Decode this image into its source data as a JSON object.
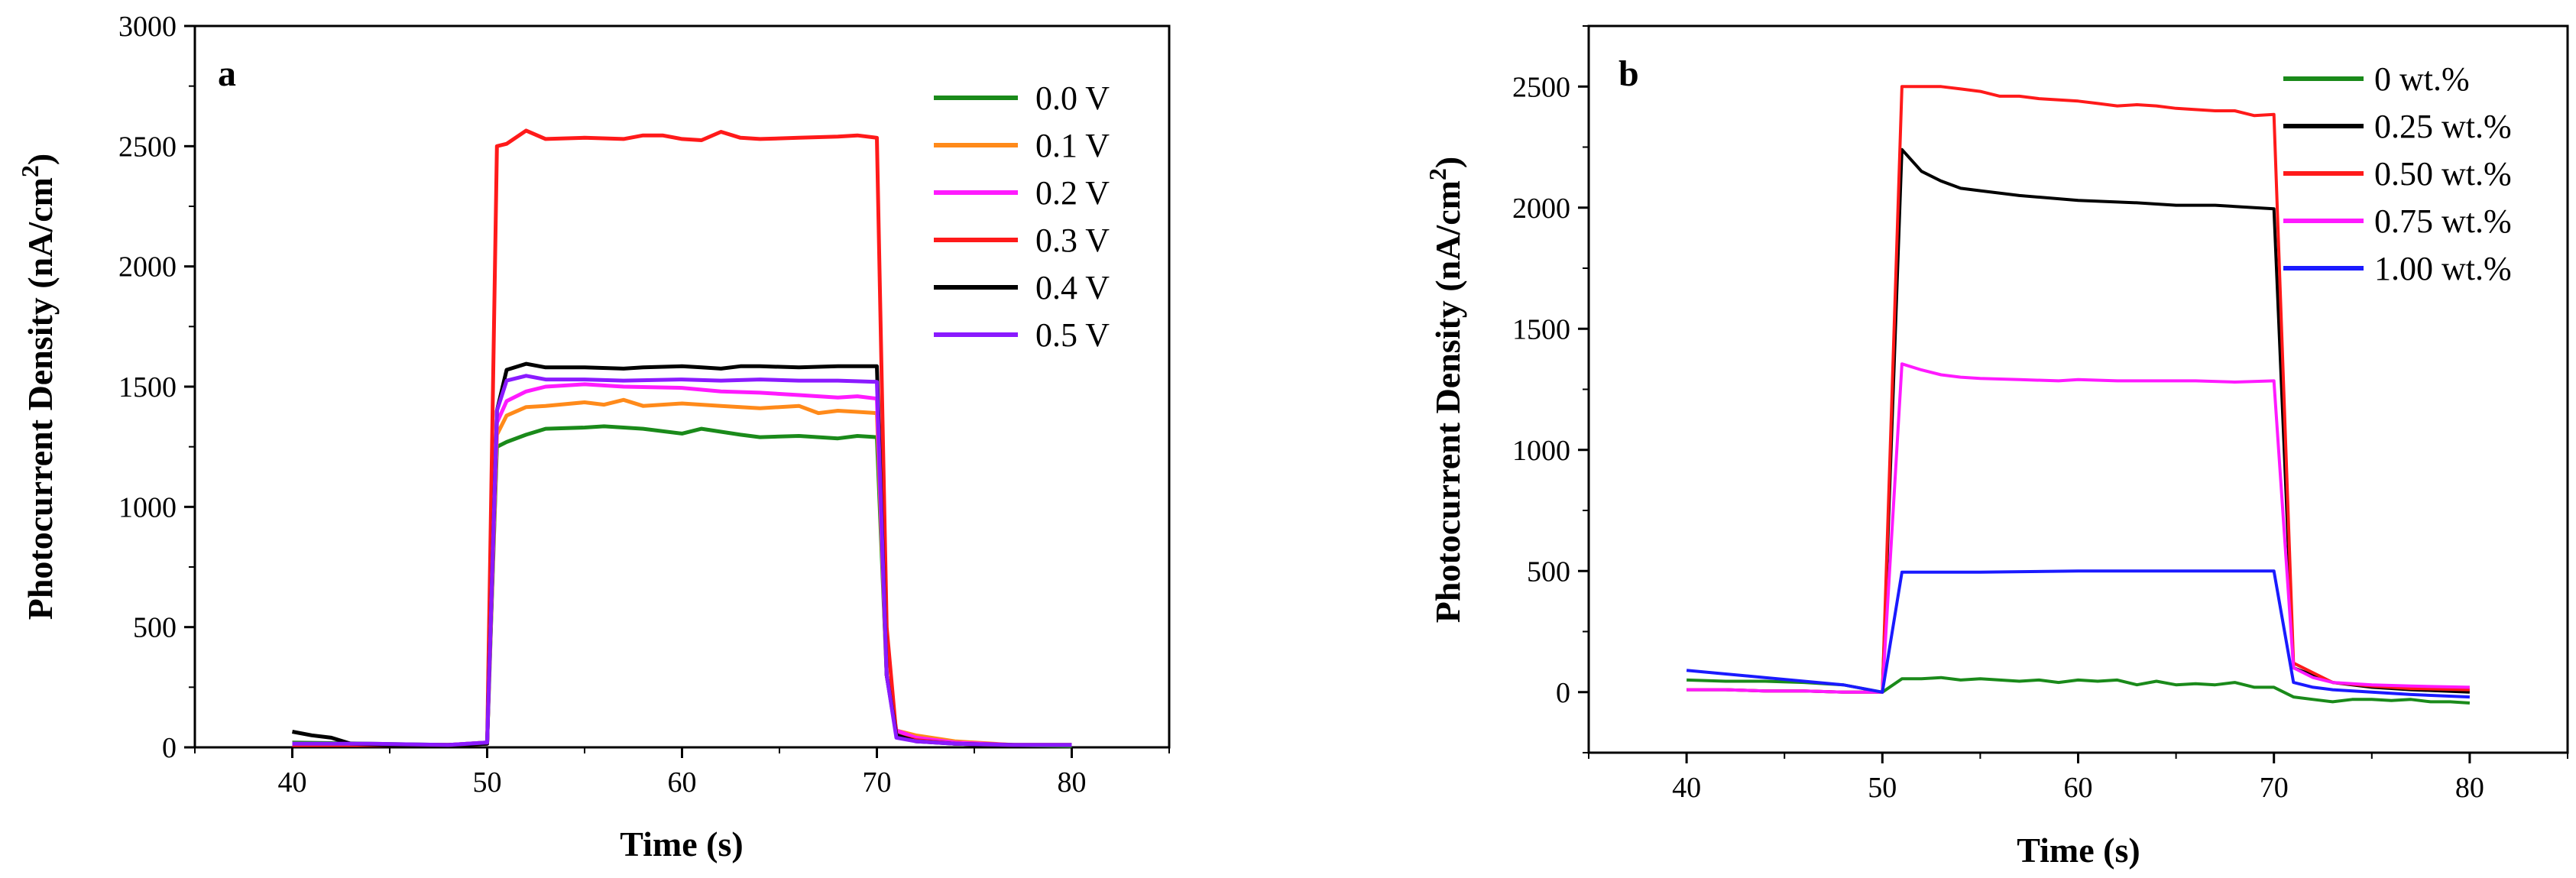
{
  "chart_data": [
    {
      "type": "line",
      "panel_label": "a",
      "xlabel": "Time (s)",
      "ylabel_main": "Photocurrent Density (nA/cm",
      "ylabel_sup": "2",
      "ylabel_close": ")",
      "xlim": [
        35,
        85
      ],
      "ylim": [
        0,
        3000
      ],
      "xticks": [
        40,
        50,
        60,
        70,
        80
      ],
      "xtick_labels": [
        "40",
        "50",
        "60",
        "70",
        "80"
      ],
      "yticks": [
        0,
        500,
        1000,
        1500,
        2000,
        2500,
        3000
      ],
      "ytick_labels": [
        "0",
        "500",
        "1000",
        "1500",
        "2000",
        "2500",
        "3000"
      ],
      "legend_position": "top-right",
      "series": [
        {
          "name": "0.0 V",
          "color": "#1a8a1a",
          "x": [
            40,
            44,
            48,
            50,
            50.5,
            51,
            52,
            53,
            55,
            56,
            58,
            60,
            61,
            63,
            64,
            66,
            68,
            69,
            70,
            70.5,
            71,
            72,
            74,
            77,
            80
          ],
          "y": [
            20,
            15,
            10,
            20,
            1250,
            1270,
            1300,
            1325,
            1330,
            1335,
            1325,
            1305,
            1325,
            1300,
            1290,
            1295,
            1285,
            1295,
            1290,
            300,
            60,
            30,
            15,
            10,
            5
          ]
        },
        {
          "name": "0.1 V",
          "color": "#ff8a1a",
          "x": [
            40,
            44,
            48,
            50,
            50.5,
            51,
            52,
            53,
            55,
            56,
            57,
            58,
            60,
            62,
            64,
            66,
            67,
            68,
            69,
            70,
            70.5,
            71,
            72,
            74,
            77,
            80
          ],
          "y": [
            15,
            10,
            10,
            20,
            1300,
            1380,
            1415,
            1420,
            1435,
            1425,
            1445,
            1420,
            1430,
            1420,
            1410,
            1420,
            1390,
            1400,
            1395,
            1390,
            300,
            70,
            50,
            25,
            10,
            10
          ]
        },
        {
          "name": "0.2 V",
          "color": "#ff1aff",
          "x": [
            40,
            44,
            48,
            50,
            50.5,
            51,
            52,
            53,
            55,
            57,
            60,
            62,
            64,
            66,
            68,
            69,
            70,
            70.5,
            71,
            72,
            74,
            77,
            80
          ],
          "y": [
            10,
            10,
            10,
            20,
            1350,
            1440,
            1480,
            1500,
            1510,
            1500,
            1495,
            1480,
            1475,
            1465,
            1455,
            1460,
            1450,
            300,
            70,
            40,
            20,
            10,
            10
          ]
        },
        {
          "name": "0.3 V",
          "color": "#ff1a1a",
          "x": [
            40,
            44,
            48,
            50,
            50.5,
            51,
            52,
            53,
            55,
            57,
            58,
            59,
            60,
            61,
            62,
            63,
            64,
            66,
            68,
            69,
            70,
            70.5,
            71,
            72,
            74,
            77,
            80
          ],
          "y": [
            10,
            10,
            10,
            15,
            2500,
            2510,
            2565,
            2530,
            2535,
            2530,
            2545,
            2545,
            2530,
            2525,
            2560,
            2535,
            2530,
            2535,
            2540,
            2545,
            2535,
            500,
            50,
            30,
            15,
            10,
            10
          ]
        },
        {
          "name": "0.4 V",
          "color": "#000000",
          "x": [
            40,
            41,
            42,
            43,
            45,
            48,
            50,
            50.5,
            51,
            52,
            53,
            55,
            57,
            58,
            60,
            61,
            62,
            63,
            64,
            66,
            68,
            70,
            70.5,
            71,
            72,
            74,
            77,
            80
          ],
          "y": [
            65,
            50,
            40,
            15,
            10,
            10,
            15,
            1400,
            1570,
            1595,
            1580,
            1580,
            1575,
            1580,
            1585,
            1580,
            1575,
            1585,
            1585,
            1580,
            1585,
            1585,
            300,
            50,
            25,
            15,
            10,
            10
          ]
        },
        {
          "name": "0.5 V",
          "color": "#8a1aff",
          "x": [
            40,
            44,
            48,
            50,
            50.5,
            51,
            52,
            53,
            55,
            57,
            60,
            62,
            64,
            66,
            68,
            70,
            70.5,
            71,
            72,
            74,
            77,
            80
          ],
          "y": [
            15,
            15,
            10,
            20,
            1400,
            1525,
            1545,
            1530,
            1530,
            1525,
            1530,
            1525,
            1530,
            1525,
            1525,
            1520,
            300,
            40,
            25,
            15,
            10,
            10
          ]
        }
      ]
    },
    {
      "type": "line",
      "panel_label": "b",
      "xlabel": "Time (s)",
      "ylabel_main": "Photocurrent Density (nA/cm",
      "ylabel_sup": "2",
      "ylabel_close": ")",
      "xlim": [
        35,
        85
      ],
      "ylim": [
        -250,
        2750
      ],
      "xticks": [
        40,
        50,
        60,
        70,
        80
      ],
      "xtick_labels": [
        "40",
        "50",
        "60",
        "70",
        "80"
      ],
      "yticks": [
        0,
        500,
        1000,
        1500,
        2000,
        2500
      ],
      "ytick_labels": [
        "0",
        "500",
        "1000",
        "1500",
        "2000",
        "2500"
      ],
      "legend_position": "top-right",
      "series": [
        {
          "name": "0 wt.%",
          "color": "#1a8a1a",
          "x": [
            40,
            42,
            44,
            46,
            48,
            50,
            51,
            52,
            53,
            54,
            55,
            56,
            57,
            58,
            59,
            60,
            61,
            62,
            63,
            64,
            65,
            66,
            67,
            68,
            69,
            70,
            71,
            72,
            73,
            74,
            75,
            76,
            77,
            78,
            79,
            80
          ],
          "y": [
            50,
            45,
            45,
            40,
            30,
            0,
            55,
            55,
            60,
            50,
            55,
            50,
            45,
            50,
            40,
            50,
            45,
            50,
            30,
            45,
            30,
            35,
            30,
            40,
            20,
            20,
            -20,
            -30,
            -40,
            -30,
            -30,
            -35,
            -30,
            -40,
            -40,
            -45
          ]
        },
        {
          "name": "0.25 wt.%",
          "color": "#000000",
          "x": [
            40,
            42,
            44,
            46,
            48,
            50,
            51,
            52,
            53,
            54,
            55,
            57,
            60,
            63,
            65,
            67,
            69,
            70,
            71,
            72,
            73,
            75,
            77,
            80
          ],
          "y": [
            10,
            10,
            5,
            5,
            0,
            0,
            2240,
            2150,
            2110,
            2080,
            2070,
            2050,
            2030,
            2020,
            2010,
            2010,
            2000,
            1995,
            100,
            70,
            40,
            20,
            10,
            0
          ]
        },
        {
          "name": "0.50 wt.%",
          "color": "#ff1a1a",
          "x": [
            40,
            42,
            44,
            46,
            48,
            50,
            51,
            52,
            53,
            54,
            55,
            56,
            57,
            58,
            60,
            61,
            62,
            63,
            64,
            65,
            66,
            67,
            68,
            69,
            70,
            71,
            72,
            73,
            75,
            77,
            80
          ],
          "y": [
            10,
            10,
            5,
            5,
            0,
            0,
            2500,
            2500,
            2500,
            2490,
            2480,
            2460,
            2460,
            2450,
            2440,
            2430,
            2420,
            2425,
            2420,
            2410,
            2405,
            2400,
            2400,
            2380,
            2385,
            120,
            80,
            40,
            25,
            15,
            10
          ]
        },
        {
          "name": "0.75 wt.%",
          "color": "#ff1aff",
          "x": [
            40,
            42,
            44,
            46,
            48,
            50,
            51,
            52,
            53,
            54,
            55,
            57,
            59,
            60,
            62,
            64,
            66,
            68,
            70,
            71,
            72,
            73,
            75,
            77,
            80
          ],
          "y": [
            10,
            10,
            5,
            5,
            0,
            0,
            1355,
            1330,
            1310,
            1300,
            1295,
            1290,
            1285,
            1290,
            1285,
            1285,
            1285,
            1280,
            1285,
            100,
            60,
            40,
            30,
            25,
            20
          ]
        },
        {
          "name": "1.00 wt.%",
          "color": "#1a1aff",
          "x": [
            40,
            42,
            44,
            46,
            48,
            50,
            51,
            52,
            55,
            60,
            65,
            70,
            71,
            72,
            73,
            75,
            77,
            80
          ],
          "y": [
            90,
            75,
            60,
            45,
            30,
            0,
            495,
            495,
            495,
            500,
            500,
            500,
            40,
            20,
            10,
            0,
            -10,
            -20
          ]
        }
      ]
    }
  ]
}
